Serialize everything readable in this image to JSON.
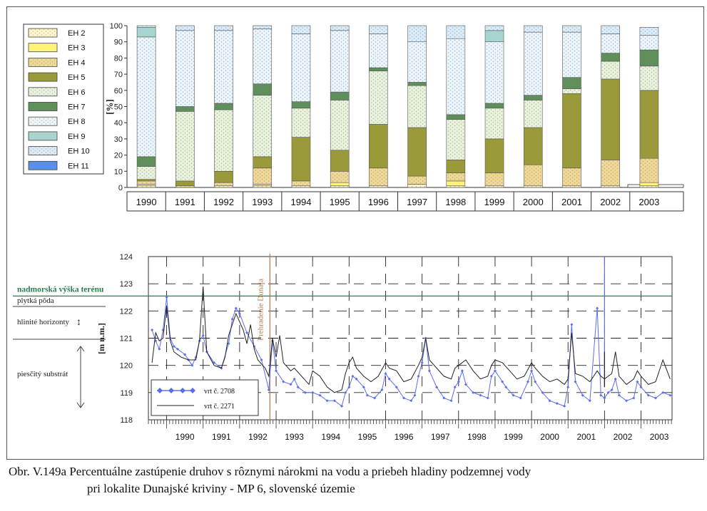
{
  "chart_data": [
    {
      "type": "bar",
      "stacked": true,
      "ylabel": "[%]",
      "ylim": [
        0,
        100
      ],
      "yticks": [
        "0",
        "10",
        "20",
        "30",
        "40",
        "50",
        "60",
        "70",
        "80",
        "90",
        "100"
      ],
      "categories": [
        "1990",
        "1991",
        "1992",
        "1993",
        "1994",
        "1995",
        "1996",
        "1997",
        "1998",
        "1999",
        "2000",
        "2001",
        "2002",
        "2003"
      ],
      "legend": {
        "placement": "left"
      },
      "series": [
        {
          "name": "EH 2",
          "color": "#fff6d0",
          "pattern": "dots",
          "values": [
            1,
            0,
            1,
            1,
            1,
            1,
            1,
            2,
            1,
            1,
            1,
            1,
            1,
            1
          ]
        },
        {
          "name": "EH 3",
          "color": "#fff37a",
          "pattern": "solid",
          "values": [
            1,
            0,
            0,
            1,
            0,
            2,
            0,
            0,
            3,
            0,
            0,
            0,
            0,
            2
          ]
        },
        {
          "name": "EH 4",
          "color": "#f0d898",
          "pattern": "dots",
          "values": [
            2,
            1,
            2,
            10,
            3,
            7,
            11,
            5,
            5,
            8,
            13,
            11,
            16,
            15
          ]
        },
        {
          "name": "EH 5",
          "color": "#9a9a3a",
          "pattern": "solid",
          "values": [
            1,
            3,
            7,
            7,
            27,
            13,
            27,
            30,
            8,
            21,
            23,
            46,
            50,
            42
          ]
        },
        {
          "name": "EH 6",
          "color": "#e8f2de",
          "pattern": "dots",
          "values": [
            8,
            43,
            38,
            38,
            18,
            31,
            33,
            26,
            25,
            19,
            17,
            3,
            11,
            15
          ]
        },
        {
          "name": "EH 7",
          "color": "#5f8f5a",
          "pattern": "solid",
          "values": [
            6,
            3,
            4,
            7,
            4,
            5,
            2,
            2,
            3,
            3,
            3,
            7,
            5,
            10
          ]
        },
        {
          "name": "EH 8",
          "color": "#eef6fc",
          "pattern": "dots",
          "values": [
            74,
            47,
            45,
            34,
            42,
            38,
            21,
            25,
            47,
            38,
            39,
            28,
            12,
            9
          ]
        },
        {
          "name": "EH 9",
          "color": "#a8d4d0",
          "pattern": "solid",
          "values": [
            6,
            0,
            0,
            0,
            0,
            0,
            0,
            0,
            0,
            7,
            0,
            0,
            0,
            0
          ]
        },
        {
          "name": "EH 10",
          "color": "#dcecf8",
          "pattern": "dots",
          "values": [
            1,
            3,
            3,
            2,
            5,
            3,
            5,
            10,
            8,
            3,
            4,
            4,
            5,
            5
          ]
        },
        {
          "name": "EH 11",
          "color": "#5a8fe8",
          "pattern": "solid",
          "values": [
            0,
            0,
            0,
            0,
            0,
            0,
            0,
            0,
            0,
            0,
            0,
            0,
            0,
            0
          ]
        }
      ]
    },
    {
      "type": "line",
      "ylabel": "[m n.m.]",
      "ylim": [
        118,
        124
      ],
      "yticks": [
        "118",
        "119",
        "120",
        "121",
        "122",
        "123",
        "124"
      ],
      "x_range": [
        1989.5,
        2003.85
      ],
      "xticks": [
        "1990",
        "1991",
        "1992",
        "1993",
        "1994",
        "1995",
        "1996",
        "1997",
        "1998",
        "1999",
        "2000",
        "2001",
        "2002",
        "2003"
      ],
      "grid": true,
      "annotations": {
        "terrain_level": {
          "label": "nadmorská výška terénu",
          "y": 122.55,
          "color": "#2e7d4f"
        },
        "damming": {
          "label": "Prehradenie Dunaja",
          "x": 1992.83,
          "color": "#b07a4a"
        }
      },
      "side_labels": [
        "plytká pôda",
        "hlinité horizonty",
        "piesčitý substrát"
      ],
      "series": [
        {
          "name": "vrt č. 2708",
          "color": "#5b6ef0",
          "marker": "diamond",
          "points": [
            [
              1989.6,
              121.3
            ],
            [
              1989.7,
              120.9
            ],
            [
              1989.8,
              120.6
            ],
            [
              1989.9,
              121.3
            ],
            [
              1990.0,
              122.5
            ],
            [
              1990.1,
              121.0
            ],
            [
              1990.2,
              120.7
            ],
            [
              1990.3,
              120.6
            ],
            [
              1990.5,
              120.4
            ],
            [
              1990.6,
              120.2
            ],
            [
              1990.7,
              120.0
            ],
            [
              1990.8,
              120.3
            ],
            [
              1990.9,
              120.9
            ],
            [
              1991.0,
              121.1
            ],
            [
              1991.1,
              120.5
            ],
            [
              1991.3,
              120.1
            ],
            [
              1991.5,
              119.9
            ],
            [
              1991.7,
              120.8
            ],
            [
              1991.8,
              121.7
            ],
            [
              1991.9,
              122.1
            ],
            [
              1992.0,
              121.9
            ],
            [
              1992.2,
              121.2
            ],
            [
              1992.4,
              120.7
            ],
            [
              1992.6,
              120.2
            ],
            [
              1992.8,
              119.1
            ],
            [
              1992.9,
              120.9
            ],
            [
              1993.0,
              119.8
            ],
            [
              1993.2,
              119.4
            ],
            [
              1993.4,
              119.3
            ],
            [
              1993.5,
              119.5
            ],
            [
              1993.6,
              119.2
            ],
            [
              1993.8,
              119.0
            ],
            [
              1994.0,
              119.0
            ],
            [
              1994.2,
              118.9
            ],
            [
              1994.4,
              118.7
            ],
            [
              1994.6,
              118.7
            ],
            [
              1994.8,
              118.5
            ],
            [
              1994.9,
              119.0
            ],
            [
              1995.0,
              119.2
            ],
            [
              1995.1,
              119.6
            ],
            [
              1995.2,
              119.5
            ],
            [
              1995.4,
              119.2
            ],
            [
              1995.5,
              118.9
            ],
            [
              1995.7,
              118.8
            ],
            [
              1995.9,
              119.1
            ],
            [
              1996.0,
              119.7
            ],
            [
              1996.1,
              119.5
            ],
            [
              1996.3,
              119.2
            ],
            [
              1996.5,
              118.8
            ],
            [
              1996.7,
              118.7
            ],
            [
              1996.8,
              118.9
            ],
            [
              1996.9,
              119.6
            ],
            [
              1997.0,
              120.1
            ],
            [
              1997.1,
              121.0
            ],
            [
              1997.2,
              119.8
            ],
            [
              1997.4,
              119.2
            ],
            [
              1997.6,
              118.8
            ],
            [
              1997.8,
              118.7
            ],
            [
              1997.9,
              119.2
            ],
            [
              1998.0,
              119.4
            ],
            [
              1998.1,
              119.8
            ],
            [
              1998.2,
              119.3
            ],
            [
              1998.4,
              119.0
            ],
            [
              1998.6,
              118.9
            ],
            [
              1998.8,
              118.8
            ],
            [
              1998.9,
              119.6
            ],
            [
              1999.0,
              119.8
            ],
            [
              1999.2,
              119.4
            ],
            [
              1999.3,
              119.2
            ],
            [
              1999.5,
              118.9
            ],
            [
              1999.7,
              118.8
            ],
            [
              1999.9,
              119.4
            ],
            [
              2000.0,
              119.8
            ],
            [
              2000.1,
              119.4
            ],
            [
              2000.3,
              119.0
            ],
            [
              2000.5,
              118.7
            ],
            [
              2000.7,
              118.6
            ],
            [
              2000.9,
              118.5
            ],
            [
              2001.0,
              119.2
            ],
            [
              2001.1,
              121.5
            ],
            [
              2001.2,
              119.4
            ],
            [
              2001.4,
              118.9
            ],
            [
              2001.6,
              118.7
            ],
            [
              2001.8,
              122.1
            ],
            [
              2001.9,
              118.9
            ],
            [
              2002.0,
              118.8
            ],
            [
              2002.1,
              119.0
            ],
            [
              2002.2,
              119.1
            ],
            [
              2002.3,
              119.5
            ],
            [
              2002.4,
              118.9
            ],
            [
              2002.6,
              118.7
            ],
            [
              2002.8,
              118.8
            ],
            [
              2002.9,
              119.4
            ],
            [
              2003.0,
              119.2
            ],
            [
              2003.2,
              118.9
            ],
            [
              2003.4,
              118.8
            ],
            [
              2003.6,
              119.0
            ],
            [
              2003.8,
              118.9
            ]
          ]
        },
        {
          "name": "vrt č. 2271",
          "color": "#222222",
          "marker": "none",
          "points": [
            [
              1989.6,
              120.1
            ],
            [
              1989.7,
              121.2
            ],
            [
              1989.8,
              120.9
            ],
            [
              1989.9,
              121.0
            ],
            [
              1990.0,
              122.2
            ],
            [
              1990.1,
              120.9
            ],
            [
              1990.2,
              120.5
            ],
            [
              1990.4,
              120.3
            ],
            [
              1990.6,
              120.2
            ],
            [
              1990.8,
              120.2
            ],
            [
              1990.9,
              120.9
            ],
            [
              1991.0,
              122.9
            ],
            [
              1991.1,
              120.5
            ],
            [
              1991.3,
              120.0
            ],
            [
              1991.5,
              119.9
            ],
            [
              1991.6,
              120.3
            ],
            [
              1991.7,
              121.1
            ],
            [
              1991.8,
              121.5
            ],
            [
              1991.9,
              121.9
            ],
            [
              1992.0,
              121.6
            ],
            [
              1992.1,
              121.3
            ],
            [
              1992.2,
              120.8
            ],
            [
              1992.3,
              121.5
            ],
            [
              1992.4,
              120.6
            ],
            [
              1992.5,
              120.2
            ],
            [
              1992.7,
              119.9
            ],
            [
              1992.8,
              119.6
            ],
            [
              1992.9,
              121.0
            ],
            [
              1993.0,
              120.3
            ],
            [
              1993.1,
              121.1
            ],
            [
              1993.2,
              120.1
            ],
            [
              1993.4,
              119.8
            ],
            [
              1993.5,
              119.9
            ],
            [
              1993.7,
              119.6
            ],
            [
              1993.9,
              119.3
            ],
            [
              1994.0,
              119.8
            ],
            [
              1994.2,
              119.6
            ],
            [
              1994.4,
              119.2
            ],
            [
              1994.6,
              119.0
            ],
            [
              1994.8,
              119.1
            ],
            [
              1994.9,
              119.7
            ],
            [
              1995.0,
              120.1
            ],
            [
              1995.1,
              120.3
            ],
            [
              1995.2,
              119.9
            ],
            [
              1995.4,
              119.6
            ],
            [
              1995.6,
              119.4
            ],
            [
              1995.8,
              119.6
            ],
            [
              1996.0,
              120.1
            ],
            [
              1996.1,
              119.9
            ],
            [
              1996.3,
              119.8
            ],
            [
              1996.5,
              119.4
            ],
            [
              1996.7,
              119.5
            ],
            [
              1996.9,
              120.0
            ],
            [
              1997.0,
              120.3
            ],
            [
              1997.1,
              121.0
            ],
            [
              1997.2,
              120.2
            ],
            [
              1997.4,
              119.9
            ],
            [
              1997.6,
              119.6
            ],
            [
              1997.8,
              119.5
            ],
            [
              1997.9,
              119.9
            ],
            [
              1998.0,
              120.0
            ],
            [
              1998.2,
              120.2
            ],
            [
              1998.4,
              119.8
            ],
            [
              1998.6,
              119.5
            ],
            [
              1998.8,
              119.6
            ],
            [
              1998.9,
              120.0
            ],
            [
              1999.0,
              120.2
            ],
            [
              1999.2,
              120.1
            ],
            [
              1999.4,
              119.8
            ],
            [
              1999.6,
              119.5
            ],
            [
              1999.8,
              119.6
            ],
            [
              2000.0,
              120.1
            ],
            [
              2000.1,
              119.9
            ],
            [
              2000.3,
              119.6
            ],
            [
              2000.5,
              119.4
            ],
            [
              2000.7,
              119.5
            ],
            [
              2000.9,
              119.3
            ],
            [
              2001.0,
              119.5
            ],
            [
              2001.1,
              121.2
            ],
            [
              2001.2,
              119.7
            ],
            [
              2001.4,
              119.6
            ],
            [
              2001.6,
              119.4
            ],
            [
              2001.8,
              119.8
            ],
            [
              2001.9,
              119.6
            ],
            [
              2002.0,
              119.5
            ],
            [
              2002.1,
              119.6
            ],
            [
              2002.2,
              119.7
            ],
            [
              2002.3,
              120.5
            ],
            [
              2002.4,
              119.6
            ],
            [
              2002.6,
              119.3
            ],
            [
              2002.8,
              119.5
            ],
            [
              2002.9,
              119.8
            ],
            [
              2003.0,
              119.6
            ],
            [
              2003.2,
              119.3
            ],
            [
              2003.4,
              119.4
            ],
            [
              2003.6,
              120.2
            ],
            [
              2003.8,
              119.5
            ]
          ]
        }
      ],
      "spikes": [
        {
          "series": "vrt č. 2708",
          "x": 2002.0,
          "y": 124.0
        },
        {
          "series": "vrt č. 2271",
          "x": 2002.0,
          "y": 120.5
        }
      ]
    }
  ],
  "caption": {
    "line1": "Obr. V.149a Percentuálne zastúpenie druhov s rôznymi nárokmi na vodu a priebeh hladiny podzemnej vody",
    "line2": "pri lokalite Dunajské kriviny - MP 6, slovenské územie"
  }
}
